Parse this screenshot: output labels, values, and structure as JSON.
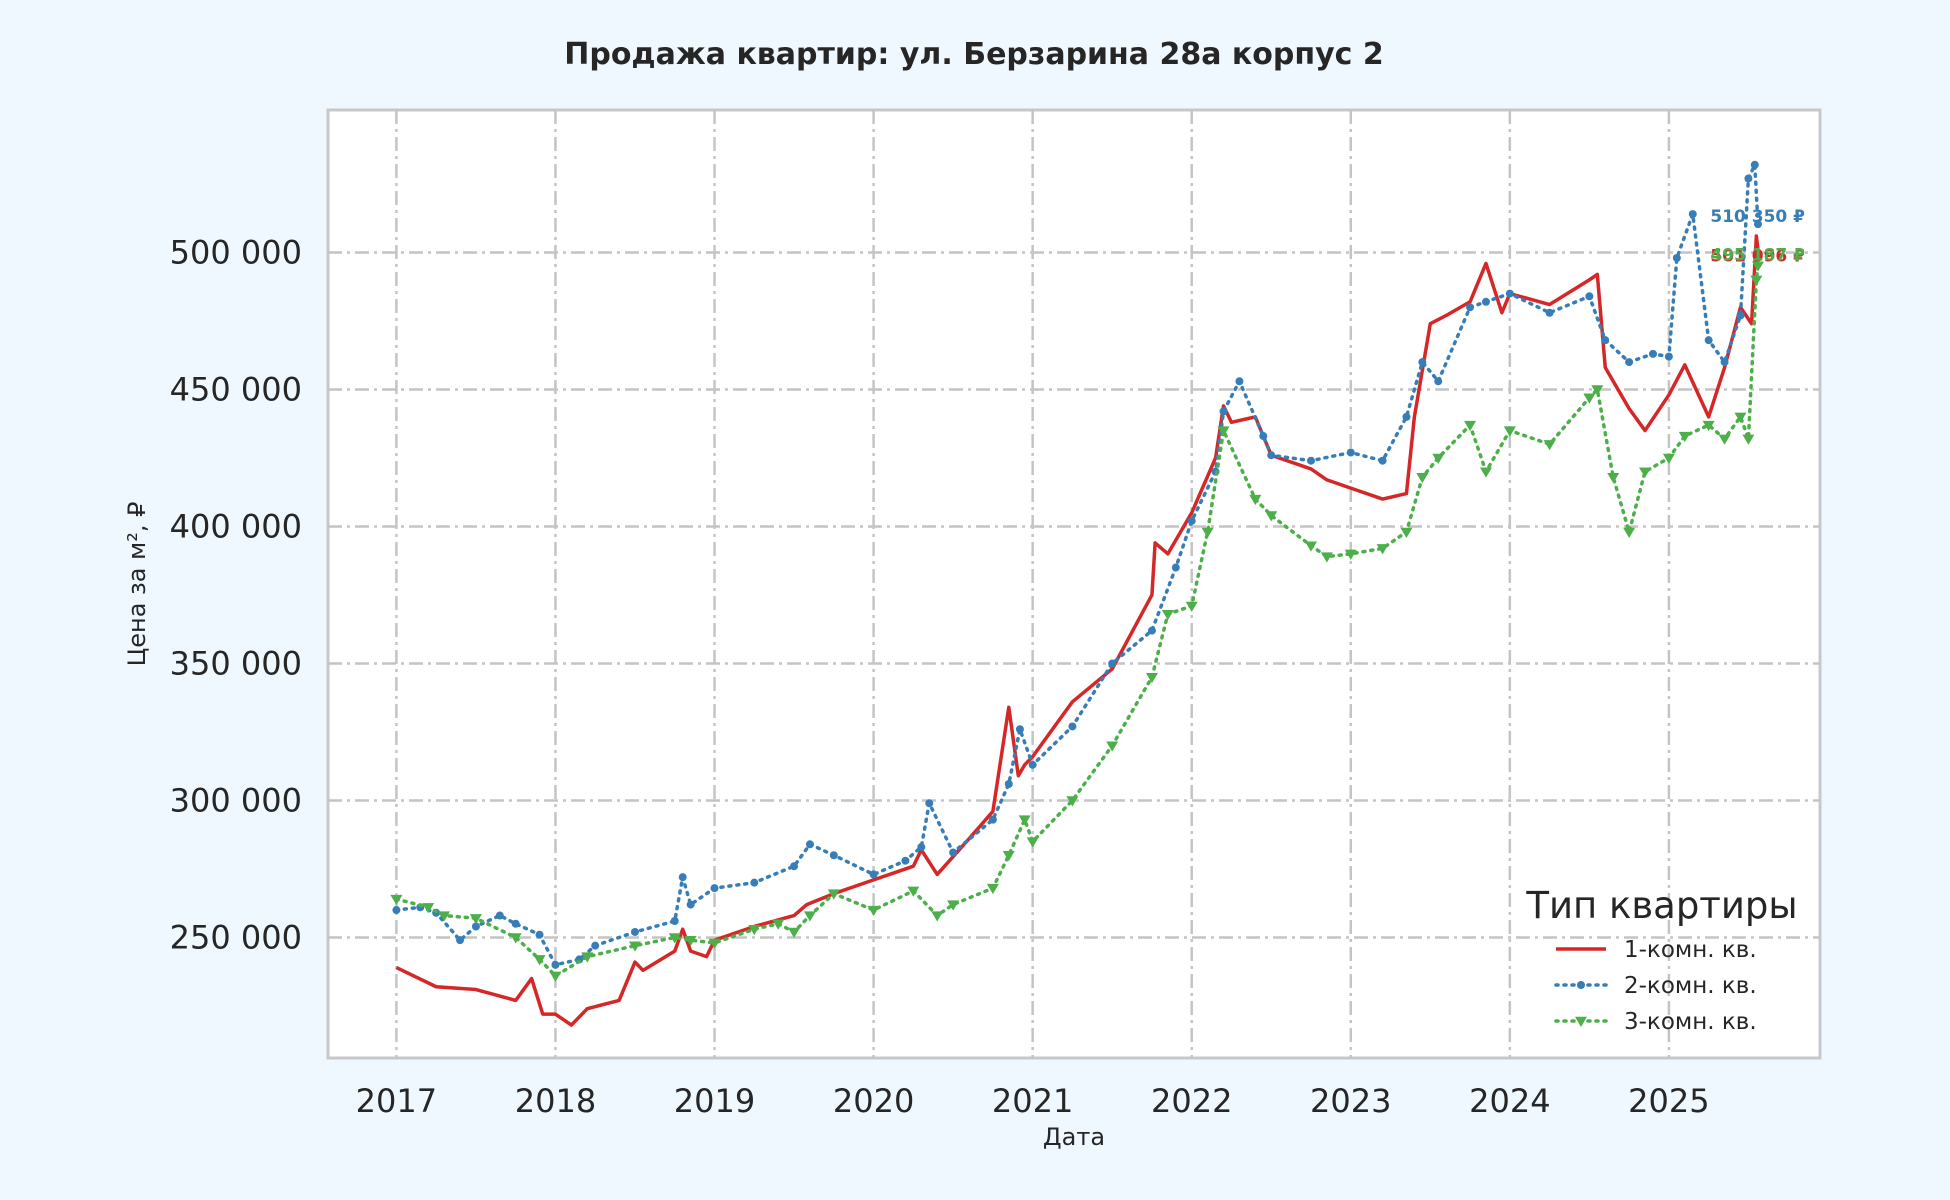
{
  "chart_data": {
    "type": "line",
    "title": "Продажа квартир: ул. Берзарина 28а корпус 2",
    "xlabel": "Дата",
    "ylabel": "Цена за м², ₽",
    "xlim": [
      2016.57,
      2025.95
    ],
    "ylim": [
      206000,
      552000
    ],
    "x_ticks": [
      2017,
      2018,
      2019,
      2020,
      2021,
      2022,
      2023,
      2024,
      2025
    ],
    "x_tick_labels": [
      "2017",
      "2018",
      "2019",
      "2020",
      "2021",
      "2022",
      "2023",
      "2024",
      "2025"
    ],
    "y_ticks": [
      250000,
      300000,
      350000,
      400000,
      450000,
      500000
    ],
    "y_tick_labels": [
      "250 000",
      "300 000",
      "350 000",
      "400 000",
      "450 000",
      "500 000"
    ],
    "grid": true,
    "legend": {
      "title": "Тип квартиры",
      "position": "bottom-right"
    },
    "series": [
      {
        "name": "1-комн. кв.",
        "color": "#d62728",
        "style": "solid",
        "marker": "none",
        "end_label": "501 096 ₽",
        "x": [
          2017.0,
          2017.25,
          2017.5,
          2017.75,
          2017.85,
          2017.92,
          2018.0,
          2018.1,
          2018.2,
          2018.4,
          2018.5,
          2018.55,
          2018.75,
          2018.8,
          2018.85,
          2018.95,
          2019.0,
          2019.25,
          2019.5,
          2019.58,
          2019.75,
          2020.0,
          2020.25,
          2020.3,
          2020.4,
          2020.6,
          2020.75,
          2020.85,
          2020.91,
          2020.95,
          2021.0,
          2021.25,
          2021.5,
          2021.75,
          2021.77,
          2021.85,
          2022.0,
          2022.15,
          2022.2,
          2022.25,
          2022.4,
          2022.5,
          2022.75,
          2022.85,
          2023.0,
          2023.2,
          2023.35,
          2023.4,
          2023.5,
          2023.6,
          2023.75,
          2023.85,
          2023.95,
          2024.0,
          2024.25,
          2024.5,
          2024.55,
          2024.6,
          2024.75,
          2024.85,
          2025.0,
          2025.1,
          2025.25,
          2025.35,
          2025.45,
          2025.52,
          2025.55,
          2025.56
        ],
        "y": [
          239000,
          232000,
          231000,
          227000,
          235000,
          222000,
          222000,
          218000,
          224000,
          227000,
          241000,
          238000,
          245000,
          253000,
          245000,
          243000,
          249000,
          254000,
          258000,
          262000,
          266000,
          271000,
          276000,
          282000,
          273000,
          286000,
          296000,
          334000,
          309000,
          313000,
          316000,
          336000,
          348000,
          375000,
          394000,
          390000,
          405000,
          425000,
          444000,
          438000,
          440000,
          426000,
          421000,
          417000,
          414000,
          410000,
          412000,
          440000,
          474000,
          477000,
          482000,
          496000,
          478000,
          485000,
          481000,
          490000,
          492000,
          458000,
          443000,
          435000,
          448000,
          459000,
          440000,
          458000,
          480000,
          474000,
          506000,
          501096
        ]
      },
      {
        "name": "2-комн. кв.",
        "color": "#377eb8",
        "style": "dotted",
        "marker": "circle",
        "end_label": "510 350 ₽",
        "x": [
          2017.0,
          2017.15,
          2017.25,
          2017.4,
          2017.5,
          2017.65,
          2017.75,
          2017.9,
          2018.0,
          2018.15,
          2018.25,
          2018.5,
          2018.75,
          2018.8,
          2018.85,
          2019.0,
          2019.25,
          2019.5,
          2019.6,
          2019.75,
          2020.0,
          2020.2,
          2020.3,
          2020.35,
          2020.5,
          2020.75,
          2020.85,
          2020.92,
          2021.0,
          2021.25,
          2021.5,
          2021.75,
          2021.9,
          2022.0,
          2022.15,
          2022.2,
          2022.3,
          2022.45,
          2022.5,
          2022.75,
          2023.0,
          2023.2,
          2023.35,
          2023.45,
          2023.55,
          2023.75,
          2023.85,
          2024.0,
          2024.25,
          2024.5,
          2024.6,
          2024.75,
          2024.9,
          2025.0,
          2025.05,
          2025.15,
          2025.25,
          2025.35,
          2025.45,
          2025.5,
          2025.54,
          2025.56
        ],
        "y": [
          260000,
          261000,
          259000,
          249000,
          254000,
          258000,
          255000,
          251000,
          240000,
          242000,
          247000,
          252000,
          256000,
          272000,
          262000,
          268000,
          270000,
          276000,
          284000,
          280000,
          273000,
          278000,
          283000,
          299000,
          281000,
          293000,
          306000,
          326000,
          313000,
          327000,
          350000,
          362000,
          385000,
          402000,
          420000,
          442000,
          453000,
          433000,
          426000,
          424000,
          427000,
          424000,
          440000,
          460000,
          453000,
          480000,
          482000,
          485000,
          478000,
          484000,
          468000,
          460000,
          463000,
          462000,
          498000,
          514000,
          468000,
          460000,
          477000,
          527000,
          532000,
          510350
        ]
      },
      {
        "name": "3-комн. кв.",
        "color": "#4daf4a",
        "style": "dotted",
        "marker": "triangle",
        "end_label": "495 187 ₽",
        "x": [
          2017.0,
          2017.2,
          2017.3,
          2017.5,
          2017.75,
          2017.9,
          2018.0,
          2018.2,
          2018.5,
          2018.75,
          2018.85,
          2019.0,
          2019.25,
          2019.4,
          2019.5,
          2019.6,
          2019.75,
          2020.0,
          2020.25,
          2020.4,
          2020.5,
          2020.75,
          2020.85,
          2020.95,
          2021.0,
          2021.25,
          2021.5,
          2021.75,
          2021.85,
          2022.0,
          2022.1,
          2022.2,
          2022.4,
          2022.5,
          2022.75,
          2022.85,
          2023.0,
          2023.2,
          2023.35,
          2023.45,
          2023.55,
          2023.75,
          2023.85,
          2024.0,
          2024.25,
          2024.5,
          2024.55,
          2024.65,
          2024.75,
          2024.85,
          2025.0,
          2025.1,
          2025.25,
          2025.35,
          2025.45,
          2025.5,
          2025.55,
          2025.56
        ],
        "y": [
          264000,
          261000,
          258000,
          257000,
          250000,
          242000,
          236000,
          243000,
          247000,
          250000,
          249000,
          248000,
          253000,
          255000,
          252000,
          258000,
          266000,
          260000,
          267000,
          258000,
          262000,
          268000,
          280000,
          293000,
          285000,
          300000,
          320000,
          345000,
          368000,
          371000,
          398000,
          435000,
          410000,
          404000,
          393000,
          389000,
          390000,
          392000,
          398000,
          418000,
          425000,
          437000,
          420000,
          435000,
          430000,
          447000,
          450000,
          418000,
          398000,
          420000,
          425000,
          433000,
          437000,
          432000,
          440000,
          432000,
          490000,
          495187
        ]
      }
    ]
  }
}
